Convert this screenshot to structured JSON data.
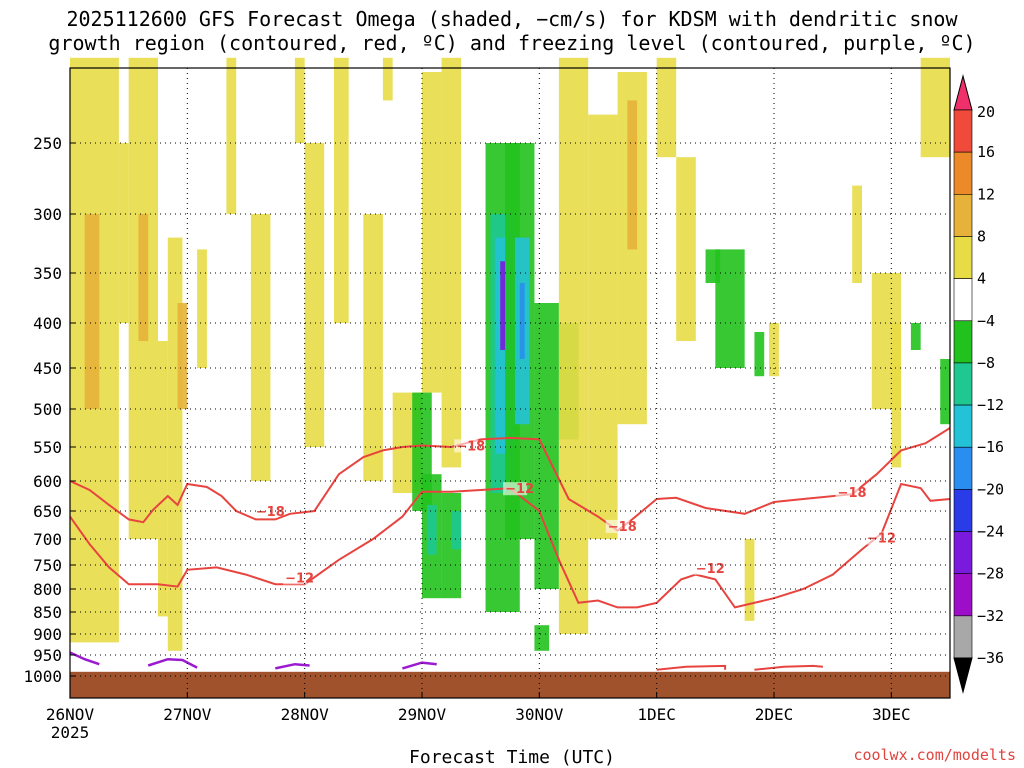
{
  "title": {
    "line1": "2025112600 GFS Forecast Omega (shaded, −cm/s) for KDSM with dendritic snow",
    "line2": "growth region (contoured, red, ºC) and freezing level (contoured, purple, ºC)"
  },
  "credit": "coolwx.com/modelts",
  "chart_data": {
    "type": "heatmap",
    "xlabel": "Forecast Time (UTC)",
    "ylabel": "",
    "x_ticks": [
      {
        "label": "26NOV",
        "sub": "2025",
        "t": 0
      },
      {
        "label": "27NOV",
        "t": 24
      },
      {
        "label": "28NOV",
        "t": 48
      },
      {
        "label": "29NOV",
        "t": 72
      },
      {
        "label": "30NOV",
        "t": 96
      },
      {
        "label": "1DEC",
        "t": 120
      },
      {
        "label": "2DEC",
        "t": 144
      },
      {
        "label": "3DEC",
        "t": 168
      }
    ],
    "xlim": [
      0,
      180
    ],
    "y_ticks": [
      "250",
      "300",
      "350",
      "400",
      "450",
      "500",
      "550",
      "600",
      "650",
      "700",
      "750",
      "800",
      "850",
      "900",
      "950",
      "1000"
    ],
    "ylim": [
      1030,
      190
    ],
    "grid": true,
    "colorbar": {
      "labels": [
        "20",
        "16",
        "12",
        "8",
        "4",
        "−4",
        "−8",
        "−12",
        "−16",
        "−20",
        "−24",
        "−28",
        "−32",
        "−36"
      ],
      "colors": [
        "#f0306a",
        "#f04a3a",
        "#ec8a2a",
        "#e6b23a",
        "#e8dc46",
        "#ffffff",
        "#22c21e",
        "#1ec890",
        "#24c2d6",
        "#2a8ef0",
        "#2a3ce8",
        "#7a1adc",
        "#9c0ec8",
        "#a8a8a8",
        "#000000"
      ]
    },
    "contour_labels": [
      {
        "text": "−18",
        "t": 38,
        "p": 655
      },
      {
        "text": "−12",
        "t": 44,
        "p": 782
      },
      {
        "text": "−18",
        "t": 79,
        "p": 552
      },
      {
        "text": "−12",
        "t": 89,
        "p": 617
      },
      {
        "text": "−18",
        "t": 110,
        "p": 682
      },
      {
        "text": "−12",
        "t": 128,
        "p": 762
      },
      {
        "text": "−18",
        "t": 157,
        "p": 623
      },
      {
        "text": "−12",
        "t": 163,
        "p": 703
      }
    ],
    "dgz_top_contour": [
      [
        0,
        600
      ],
      [
        4,
        615
      ],
      [
        8,
        640
      ],
      [
        12,
        665
      ],
      [
        15,
        670
      ],
      [
        17,
        648
      ],
      [
        20,
        625
      ],
      [
        22,
        640
      ],
      [
        24,
        605
      ],
      [
        28,
        610
      ],
      [
        31,
        625
      ],
      [
        34,
        650
      ],
      [
        38,
        665
      ],
      [
        42,
        665
      ],
      [
        45,
        655
      ],
      [
        50,
        650
      ],
      [
        55,
        590
      ],
      [
        60,
        565
      ],
      [
        64,
        555
      ],
      [
        68,
        550
      ],
      [
        72,
        548
      ],
      [
        78,
        550
      ],
      [
        84,
        540
      ],
      [
        90,
        538
      ],
      [
        96,
        540
      ],
      [
        102,
        630
      ],
      [
        108,
        660
      ],
      [
        112,
        685
      ],
      [
        115,
        665
      ],
      [
        120,
        630
      ],
      [
        124,
        628
      ],
      [
        130,
        645
      ],
      [
        138,
        655
      ],
      [
        144,
        635
      ],
      [
        150,
        630
      ],
      [
        160,
        622
      ],
      [
        165,
        590
      ],
      [
        170,
        555
      ],
      [
        175,
        545
      ],
      [
        180,
        525
      ]
    ],
    "dgz_bottom_contour": [
      [
        0,
        660
      ],
      [
        4,
        710
      ],
      [
        8,
        755
      ],
      [
        12,
        790
      ],
      [
        18,
        790
      ],
      [
        22,
        795
      ],
      [
        24,
        760
      ],
      [
        30,
        755
      ],
      [
        36,
        770
      ],
      [
        42,
        790
      ],
      [
        48,
        790
      ],
      [
        55,
        740
      ],
      [
        62,
        700
      ],
      [
        68,
        660
      ],
      [
        72,
        618
      ],
      [
        78,
        618
      ],
      [
        84,
        615
      ],
      [
        90,
        612
      ],
      [
        96,
        650
      ],
      [
        100,
        740
      ],
      [
        104,
        830
      ],
      [
        108,
        825
      ],
      [
        112,
        840
      ],
      [
        116,
        840
      ],
      [
        120,
        830
      ],
      [
        125,
        780
      ],
      [
        128,
        770
      ],
      [
        132,
        780
      ],
      [
        136,
        840
      ],
      [
        144,
        820
      ],
      [
        150,
        800
      ],
      [
        156,
        770
      ],
      [
        162,
        720
      ],
      [
        166,
        690
      ],
      [
        170,
        605
      ],
      [
        174,
        612
      ],
      [
        176,
        633
      ],
      [
        180,
        630
      ]
    ],
    "freezing_contours": [
      [
        [
          0,
          944
        ],
        [
          3,
          960
        ],
        [
          6,
          972
        ]
      ],
      [
        [
          16,
          975
        ],
        [
          20,
          960
        ],
        [
          23,
          962
        ],
        [
          26,
          980
        ]
      ],
      [
        [
          42,
          982
        ],
        [
          46,
          972
        ],
        [
          49,
          975
        ]
      ],
      [
        [
          68,
          982
        ],
        [
          72,
          968
        ],
        [
          75,
          972
        ]
      ]
    ],
    "surface_pressure": 990
  }
}
